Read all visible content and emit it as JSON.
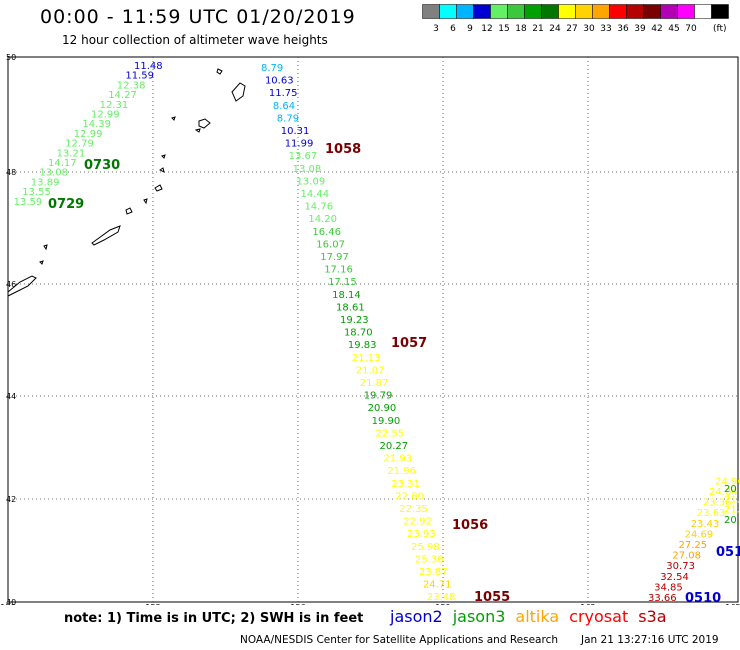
{
  "header": {
    "title": "00:00 - 11:59 UTC 01/20/2019",
    "subtitle": "12 hour collection of altimeter wave heights"
  },
  "color_scale": {
    "colors": [
      "#808080",
      "#00ffff",
      "#00b4ff",
      "#0000d2",
      "#64f064",
      "#3cc83c",
      "#00a000",
      "#007800",
      "#ffff00",
      "#ffd200",
      "#ffa500",
      "#ff0000",
      "#b40000",
      "#780000",
      "#b400b4",
      "#ff00ff",
      "#ffffff",
      "#000000"
    ],
    "labels": [
      "3",
      "6",
      "9",
      "12",
      "15",
      "18",
      "21",
      "24",
      "27",
      "30",
      "33",
      "36",
      "39",
      "42",
      "45",
      "70",
      "(ft)"
    ]
  },
  "axes": {
    "x_ticks": [
      "150",
      "153",
      "156",
      "159",
      "162",
      "165"
    ],
    "y_ticks": [
      "50",
      "48",
      "46",
      "44",
      "42",
      "40"
    ]
  },
  "pass_labels": [
    {
      "text": "0730",
      "color": "#007800"
    },
    {
      "text": "0729",
      "color": "#007800"
    },
    {
      "text": "1058",
      "color": "#780000"
    },
    {
      "text": "1057",
      "color": "#780000"
    },
    {
      "text": "1056",
      "color": "#780000"
    },
    {
      "text": "1055",
      "color": "#780000"
    },
    {
      "text": "0510",
      "color": "#0000d2"
    },
    {
      "text": "051",
      "color": "#0000d2"
    }
  ],
  "tracks": {
    "track_a": {
      "values": [
        "11.48",
        "11.59",
        "12.38",
        "14.27",
        "12.31",
        "12.99",
        "14.39",
        "12.99",
        "12.79",
        "13.21",
        "14.17",
        "13.08",
        "13.89",
        "13.55",
        "13.59"
      ],
      "colors": [
        "#0000d2",
        "#0000d2",
        "#64f064",
        "#64f064",
        "#64f064",
        "#64f064",
        "#64f064",
        "#64f064",
        "#64f064",
        "#64f064",
        "#64f064",
        "#64f064",
        "#64f064",
        "#64f064",
        "#64f064"
      ]
    },
    "track_b": {
      "values": [
        "8.79",
        "10.63",
        "11.75",
        "8.64",
        "8.79",
        "10.31",
        "11.99",
        "13.67",
        "13.08",
        "13.09",
        "14.44",
        "14.76",
        "14.20",
        "16.46",
        "16.07",
        "17.97",
        "17.16",
        "17.15",
        "18.14",
        "18.61",
        "19.23",
        "18.70",
        "19.83",
        "21.13",
        "21.07",
        "21.87",
        "19.79",
        "20.90",
        "19.90",
        "22.55",
        "20.27",
        "21.93",
        "21.96",
        "23.31",
        "22.80",
        "22.35",
        "22.92",
        "23.93",
        "25.98",
        "25.36",
        "23.87",
        "24.71",
        "23.48"
      ],
      "colors": [
        "#00b4ff",
        "#0000d2",
        "#0000d2",
        "#00b4ff",
        "#00b4ff",
        "#0000d2",
        "#0000d2",
        "#64f064",
        "#64f064",
        "#64f064",
        "#64f064",
        "#64f064",
        "#64f064",
        "#3cc83c",
        "#3cc83c",
        "#3cc83c",
        "#3cc83c",
        "#3cc83c",
        "#00a000",
        "#00a000",
        "#00a000",
        "#00a000",
        "#00a000",
        "#ffff00",
        "#ffff00",
        "#ffff00",
        "#00a000",
        "#00a000",
        "#00a000",
        "#ffff00",
        "#00a000",
        "#ffff00",
        "#ffff00",
        "#ffff00",
        "#ffff00",
        "#ffff00",
        "#ffff00",
        "#ffff00",
        "#ffff00",
        "#ffff00",
        "#ffff00",
        "#ffd200",
        "#ffff00"
      ]
    },
    "track_c": {
      "values": [
        "33.66",
        "34.85",
        "32.54",
        "30.73",
        "27.08",
        "27.25",
        "24.69",
        "23.43",
        "23.63",
        "23.36",
        "24.04",
        "24.96"
      ],
      "colors": [
        "#b40000",
        "#b40000",
        "#b40000",
        "#b40000",
        "#ffa500",
        "#ffa500",
        "#ffd200",
        "#ffd200",
        "#ffff00",
        "#ffff00",
        "#ffff00",
        "#ffff00"
      ]
    },
    "track_d": {
      "values": [
        "20.",
        "21.",
        "21.",
        "20."
      ],
      "colors": [
        "#00a000",
        "#ffff00",
        "#ffff00",
        "#00a000"
      ]
    }
  },
  "legend_note": "note: 1) Time is in UTC; 2) SWH is in feet",
  "satellites": [
    {
      "name": "jason2",
      "color": "#0000d2"
    },
    {
      "name": "jason3",
      "color": "#00a000"
    },
    {
      "name": "altika",
      "color": "#ffa500"
    },
    {
      "name": "cryosat",
      "color": "#ff0000"
    },
    {
      "name": "s3a",
      "color": "#b40000"
    }
  ],
  "footer": {
    "credit": "NOAA/NESDIS Center for Satellite Applications and Research",
    "generated": "Jan 21 13:27:16 UTC 2019"
  }
}
